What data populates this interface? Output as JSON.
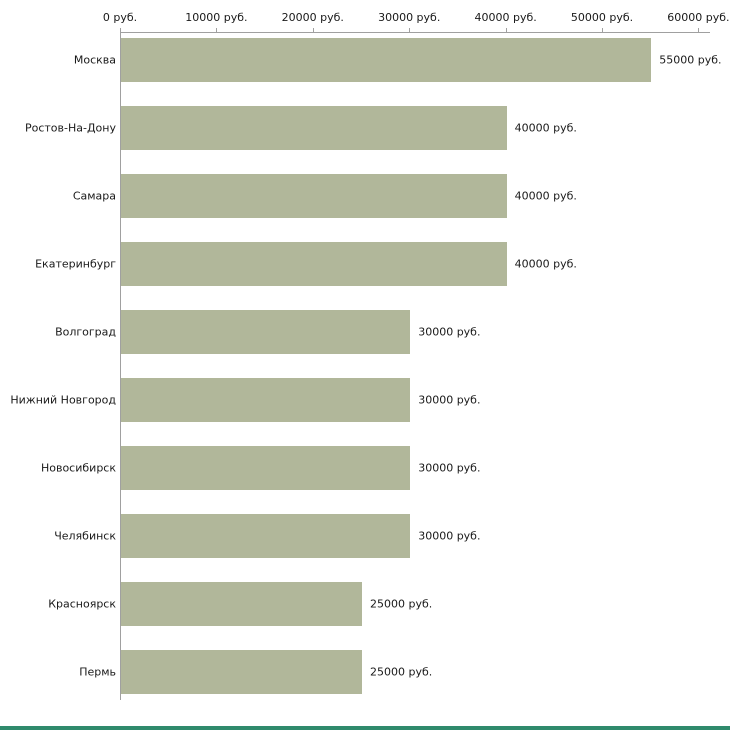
{
  "chart_data": {
    "type": "bar",
    "orientation": "horizontal",
    "title": "",
    "xlabel": "",
    "ylabel": "",
    "categories": [
      "Москва",
      "Ростов-На-Дону",
      "Самара",
      "Екатеринбург",
      "Волгоград",
      "Нижний Новгород",
      "Новосибирск",
      "Челябинск",
      "Красноярск",
      "Пермь"
    ],
    "values": [
      55000,
      40000,
      40000,
      40000,
      30000,
      30000,
      30000,
      30000,
      25000,
      25000
    ],
    "value_labels": [
      "55000 руб.",
      "40000 руб.",
      "40000 руб.",
      "40000 руб.",
      "30000 руб.",
      "30000 руб.",
      "30000 руб.",
      "30000 руб.",
      "25000 руб.",
      "25000 руб."
    ],
    "x_ticks": [
      "0 руб.",
      "10000 руб.",
      "20000 руб.",
      "30000 руб.",
      "40000 руб.",
      "50000 руб.",
      "60000 руб."
    ],
    "x_tick_values": [
      0,
      10000,
      20000,
      30000,
      40000,
      50000,
      60000
    ],
    "xlim": [
      0,
      61200
    ],
    "grid": false,
    "legend": "none",
    "bar_color": "#b1b79a",
    "axis_color": "#a0a0a0",
    "text_color": "#1a1a1a"
  },
  "footer": {
    "strip_color": "#2f8a6c"
  }
}
